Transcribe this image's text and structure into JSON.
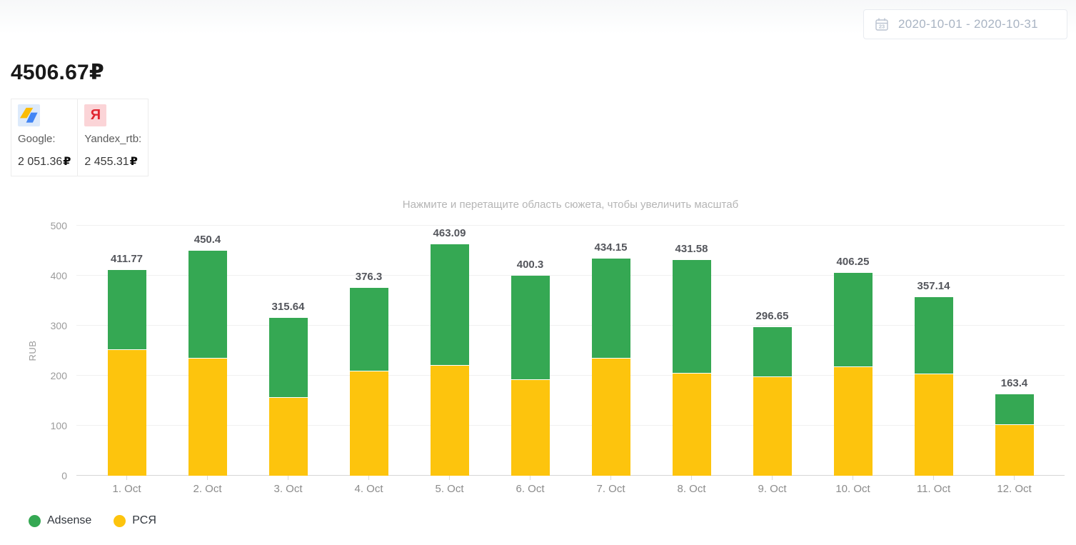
{
  "header": {
    "date_range": "2020-10-01 - 2020-10-31"
  },
  "summary": {
    "total": "4506.67₽",
    "cards": [
      {
        "icon": "adsense-icon",
        "label": "Google:",
        "value": "2 051.36",
        "currency": "₽"
      },
      {
        "icon": "yandex-icon",
        "letter": "Я",
        "label": "Yandex_rtb:",
        "value": "2 455.31",
        "currency": "₽"
      }
    ]
  },
  "chart_data": {
    "type": "bar",
    "stacked": true,
    "subtitle": "Нажмите и перетащите область сюжета, чтобы увеличить масштаб",
    "ylabel": "RUB",
    "ylim": [
      0,
      500
    ],
    "yticks": [
      0,
      100,
      200,
      300,
      400,
      500
    ],
    "grid": true,
    "legend_position": "bottom-left",
    "categories": [
      "1. Oct",
      "2. Oct",
      "3. Oct",
      "4. Oct",
      "5. Oct",
      "6. Oct",
      "7. Oct",
      "8. Oct",
      "9. Oct",
      "10. Oct",
      "11. Oct",
      "12. Oct"
    ],
    "series": [
      {
        "name": "Adsense",
        "color": "#35a853",
        "values": [
          159.4,
          214.7,
          158.3,
          166.9,
          242.1,
          206.9,
          198.8,
          225.7,
          97.9,
          187.5,
          153.1,
          60.2
        ]
      },
      {
        "name": "РСЯ",
        "color": "#fdc40d",
        "values": [
          252.4,
          235.7,
          157.3,
          209.4,
          221.0,
          193.4,
          235.4,
          205.9,
          198.7,
          218.8,
          204.0,
          103.2
        ]
      }
    ],
    "totals": [
      "411.77",
      "450.4",
      "315.64",
      "376.3",
      "463.09",
      "400.3",
      "434.15",
      "431.58",
      "296.65",
      "406.25",
      "357.14",
      "163.4"
    ]
  }
}
